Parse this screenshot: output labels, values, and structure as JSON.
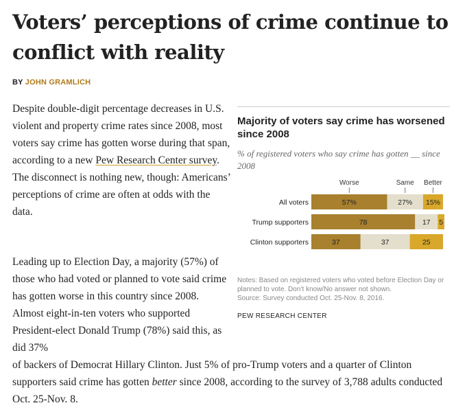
{
  "article": {
    "title": "Voters’ perceptions of crime continue to conflict with reality",
    "byline_prefix": "BY ",
    "author": "JOHN GRAMLICH",
    "p1_before_link": "Despite double-digit percentage decreases in U.S. violent and property crime rates since 2008, most voters say crime has gotten worse during that span, according to a new ",
    "p1_link": "Pew Research Center survey",
    "p1_after_link": ". The disconnect is nothing new, though: Americans’ perceptions of crime are often at odds with the data.",
    "p2": "Leading up to Election Day, a majority (57%) of those who had voted or planned to vote said crime has gotten worse in this country since 2008. Almost eight-in-ten voters who supported President-elect Donald Trump (78%) said this, as did 37%",
    "p3_before": "of backers of Democrat Hillary Clinton. Just 5% of pro-Trump voters and a quarter of Clinton supporters said crime has gotten ",
    "p3_em": "better",
    "p3_after": " since 2008, according to the survey of 3,788 adults conducted Oct. 25-Nov. 8."
  },
  "chart": {
    "title": "Majority of voters say crime has worsened since 2008",
    "subtitle": "% of registered voters who say crime has gotten __ since 2008",
    "notes": "Notes: Based on registered voters who voted before Election Day or planned to vote. Don’t know/No answer not shown.",
    "source": "Source: Survey conducted Oct. 25-Nov. 8, 2016.",
    "org": "PEW RESEARCH CENTER"
  },
  "chart_data": {
    "type": "bar",
    "orientation": "horizontal-stacked",
    "categories": [
      "All voters",
      "Trump supporters",
      "Clinton supporters"
    ],
    "series": [
      {
        "name": "Worse",
        "values": [
          57,
          78,
          37
        ],
        "labels": [
          "57%",
          "78",
          "37"
        ],
        "color": "#a8802e"
      },
      {
        "name": "Same",
        "values": [
          27,
          17,
          37
        ],
        "labels": [
          "27%",
          "17",
          "37"
        ],
        "color": "#e3dfcc"
      },
      {
        "name": "Better",
        "values": [
          15,
          5,
          25
        ],
        "labels": [
          "15%",
          "5",
          "25"
        ],
        "color": "#d9a82b"
      }
    ]
  }
}
